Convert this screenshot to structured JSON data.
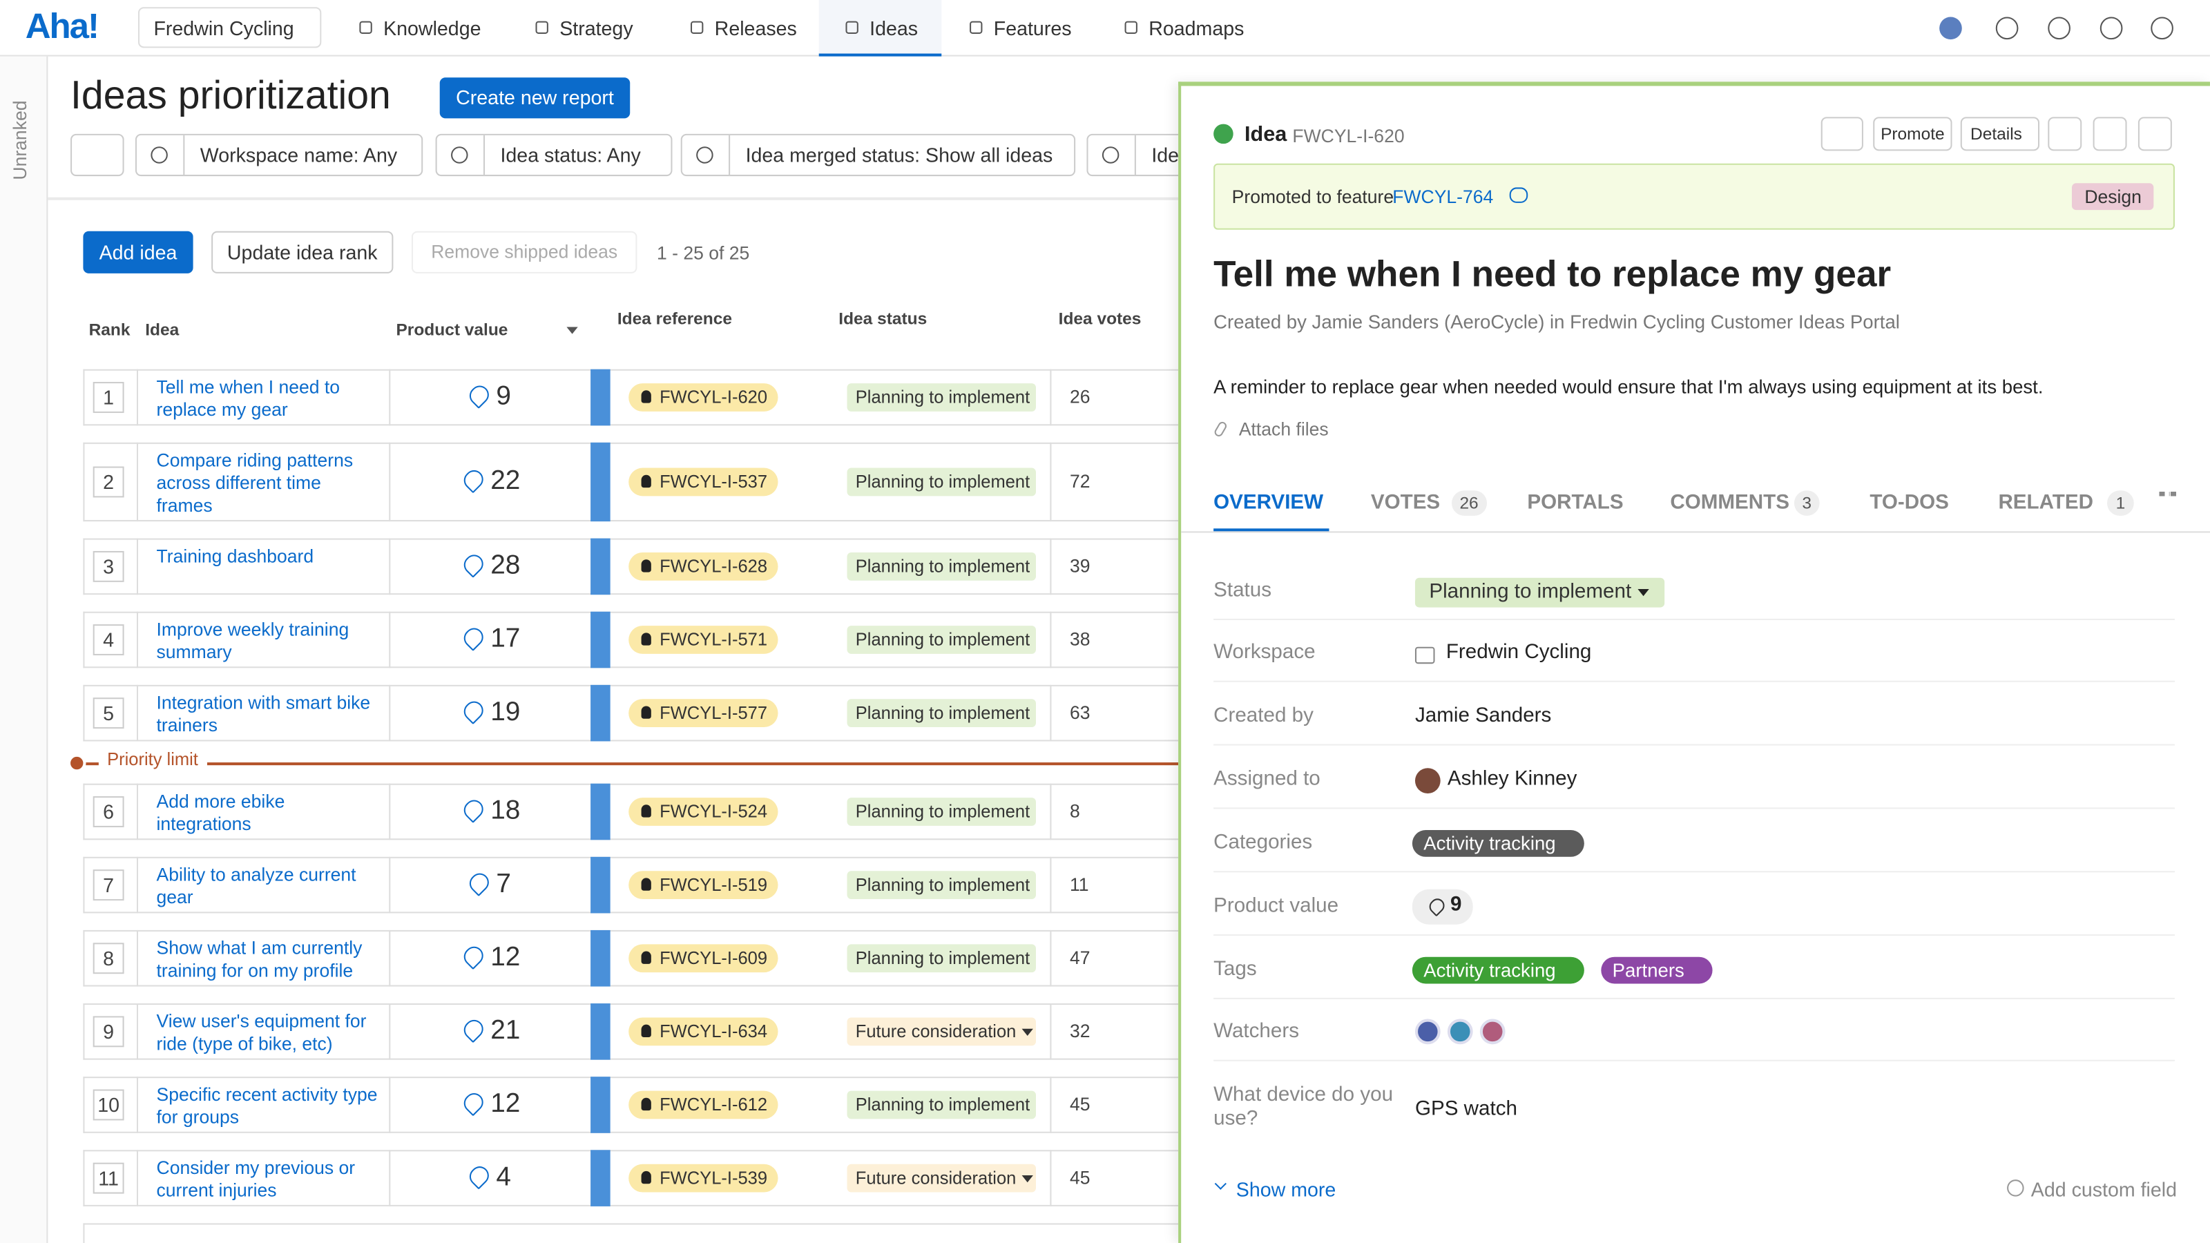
{
  "nav": {
    "logo": "Aha!",
    "workspace": "Fredwin Cycling",
    "tabs": [
      "Knowledge",
      "Strategy",
      "Releases",
      "Ideas",
      "Features",
      "Roadmaps"
    ],
    "active": "Ideas"
  },
  "sidebar": {
    "label": "Unranked"
  },
  "header": {
    "title": "Ideas prioritization",
    "button": "Create new report"
  },
  "filters": [
    "Workspace name: Any",
    "Idea status: Any",
    "Idea merged status: Show all ideas",
    "Ide"
  ],
  "toolbar": {
    "add": "Add idea",
    "update": "Update idea rank",
    "remove": "Remove shipped ideas",
    "count": "1 - 25 of 25"
  },
  "table": {
    "columns": [
      "Rank",
      "Idea",
      "Product value",
      "Idea reference",
      "Idea status",
      "Idea votes"
    ],
    "priority_limit": "Priority limit",
    "rows": [
      {
        "rank": "1",
        "idea": "Tell me when I need to replace my gear",
        "value": "9",
        "ref": "FWCYL-I-620",
        "status": "Planning to implement",
        "votes": "26"
      },
      {
        "rank": "2",
        "idea": "Compare riding patterns across different time frames",
        "value": "22",
        "ref": "FWCYL-I-537",
        "status": "Planning to implement",
        "votes": "72"
      },
      {
        "rank": "3",
        "idea": "Training dashboard",
        "value": "28",
        "ref": "FWCYL-I-628",
        "status": "Planning to implement",
        "votes": "39"
      },
      {
        "rank": "4",
        "idea": "Improve weekly training summary",
        "value": "17",
        "ref": "FWCYL-I-571",
        "status": "Planning to implement",
        "votes": "38"
      },
      {
        "rank": "5",
        "idea": "Integration with smart bike trainers",
        "value": "19",
        "ref": "FWCYL-I-577",
        "status": "Planning to implement",
        "votes": "63"
      },
      {
        "rank": "6",
        "idea": "Add more ebike integrations",
        "value": "18",
        "ref": "FWCYL-I-524",
        "status": "Planning to implement",
        "votes": "8"
      },
      {
        "rank": "7",
        "idea": "Ability to analyze current gear",
        "value": "7",
        "ref": "FWCYL-I-519",
        "status": "Planning to implement",
        "votes": "11"
      },
      {
        "rank": "8",
        "idea": "Show what I am currently training for on my profile",
        "value": "12",
        "ref": "FWCYL-I-609",
        "status": "Planning to implement",
        "votes": "47"
      },
      {
        "rank": "9",
        "idea": "View user's equipment for ride (type of bike, etc)",
        "value": "21",
        "ref": "FWCYL-I-634",
        "status": "Future consideration",
        "votes": "32"
      },
      {
        "rank": "10",
        "idea": "Specific recent activity type for groups",
        "value": "12",
        "ref": "FWCYL-I-612",
        "status": "Planning to implement",
        "votes": "45"
      },
      {
        "rank": "11",
        "idea": "Consider my previous or current injuries",
        "value": "4",
        "ref": "FWCYL-I-539",
        "status": "Future consideration",
        "votes": "45"
      }
    ]
  },
  "panel": {
    "kind": "Idea",
    "ref": "FWCYL-I-620",
    "promote": "Promote",
    "details": "Details",
    "banner": {
      "text": "Promoted to feature",
      "link": "FWCYL-764",
      "tag": "Design"
    },
    "title": "Tell me when I need to replace my gear",
    "created": "Created by Jamie Sanders (AeroCycle) in Fredwin Cycling Customer Ideas Portal",
    "description": "A reminder to replace gear when needed would ensure that I'm always using equipment at its best.",
    "attach": "Attach files",
    "tabs": [
      {
        "label": "OVERVIEW"
      },
      {
        "label": "VOTES",
        "count": "26"
      },
      {
        "label": "PORTALS"
      },
      {
        "label": "COMMENTS",
        "count": "3"
      },
      {
        "label": "TO-DOS"
      },
      {
        "label": "RELATED",
        "count": "1"
      }
    ],
    "fields": [
      {
        "label": "Status",
        "value": "Planning to implement"
      },
      {
        "label": "Workspace",
        "value": "Fredwin Cycling"
      },
      {
        "label": "Created by",
        "value": "Jamie Sanders"
      },
      {
        "label": "Assigned to",
        "value": "Ashley Kinney"
      },
      {
        "label": "Categories",
        "value": "Activity tracking"
      },
      {
        "label": "Product value",
        "value": "9"
      },
      {
        "label": "Tags",
        "values": [
          "Activity tracking",
          "Partners"
        ]
      },
      {
        "label": "Watchers"
      },
      {
        "label": "What device do you use?",
        "value": "GPS watch"
      }
    ],
    "show_more": "Show more",
    "add_field": "Add custom field"
  }
}
